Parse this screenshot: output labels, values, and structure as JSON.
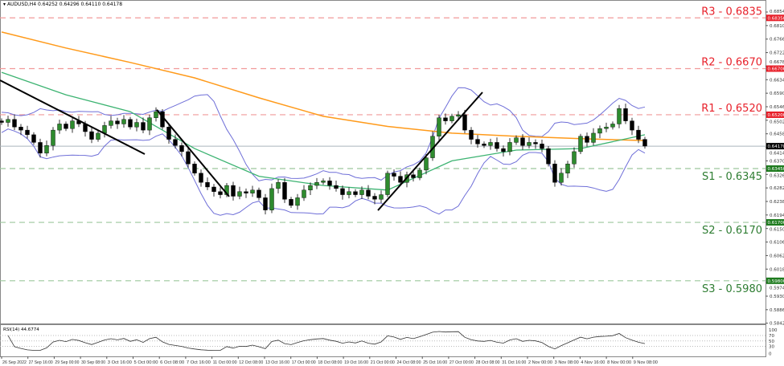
{
  "header": {
    "symbol_timeframe": "AUDUSD,H4",
    "ohlc": "0.64252 0.64296 0.64110 0.64178"
  },
  "colors": {
    "resistance": "#e8202a",
    "support": "#2e7d32",
    "ma200": "#ff9a1a",
    "ma50": "#3cb371",
    "bollinger": "#6f6fd8",
    "trendline": "#000000",
    "bull_candle": "#2e8b2e",
    "bear_candle": "#000000"
  },
  "chart_data": {
    "type": "candlestick",
    "symbol": "AUDUSD",
    "timeframe": "H4",
    "ylim": [
      0.5842,
      0.6854
    ],
    "y_ticks": [
      "0.68540",
      "0.68100",
      "0.67660",
      "0.67220",
      "0.66780",
      "0.66340",
      "0.65900",
      "0.65460",
      "0.65020",
      "0.64580",
      "0.64140",
      "0.63700",
      "0.63260",
      "0.62820",
      "0.62380",
      "0.61940",
      "0.61500",
      "0.61060",
      "0.60620",
      "0.60180",
      "0.59740",
      "0.59300",
      "0.58860",
      "0.58420"
    ],
    "x_ticks": [
      "26 Sep 2022",
      "27 Sep 16:00",
      "29 Sep 00:00",
      "30 Sep 08:00",
      "3 Oct 16:00",
      "5 Oct 00:00",
      "6 Oct 08:00",
      "7 Oct 16:00",
      "11 Oct 00:00",
      "12 Oct 08:00",
      "13 Oct 16:00",
      "17 Oct 00:00",
      "18 Oct 08:00",
      "19 Oct 16:00",
      "21 Oct 00:00",
      "24 Oct 08:00",
      "25 Oct 16:00",
      "27 Oct 00:00",
      "28 Oct 08:00",
      "31 Oct 16:00",
      "2 Nov 00:00",
      "3 Nov 08:00",
      "4 Nov 16:00",
      "8 Nov 00:00",
      "9 Nov 08:00"
    ],
    "closes": [
      0.6495,
      0.6505,
      0.648,
      0.647,
      0.6455,
      0.643,
      0.6395,
      0.642,
      0.647,
      0.649,
      0.6475,
      0.65,
      0.649,
      0.6465,
      0.644,
      0.646,
      0.6485,
      0.65,
      0.649,
      0.6505,
      0.648,
      0.6495,
      0.647,
      0.651,
      0.653,
      0.648,
      0.644,
      0.642,
      0.64,
      0.636,
      0.633,
      0.63,
      0.6285,
      0.627,
      0.626,
      0.629,
      0.6255,
      0.627,
      0.6265,
      0.6275,
      0.625,
      0.621,
      0.628,
      0.63,
      0.6245,
      0.6225,
      0.625,
      0.6275,
      0.629,
      0.63,
      0.6305,
      0.629,
      0.628,
      0.626,
      0.627,
      0.626,
      0.6275,
      0.6255,
      0.6245,
      0.626,
      0.633,
      0.632,
      0.63,
      0.6325,
      0.6315,
      0.634,
      0.638,
      0.645,
      0.651,
      0.65,
      0.6515,
      0.652,
      0.647,
      0.644,
      0.6425,
      0.642,
      0.643,
      0.641,
      0.64,
      0.643,
      0.6445,
      0.642,
      0.643,
      0.6425,
      0.641,
      0.636,
      0.63,
      0.633,
      0.636,
      0.64,
      0.645,
      0.643,
      0.646,
      0.6475,
      0.648,
      0.649,
      0.654,
      0.65,
      0.647,
      0.644,
      0.6418
    ],
    "ma200": [
      0.6789,
      0.6737,
      0.669,
      0.664,
      0.6575,
      0.6515,
      0.6482,
      0.646,
      0.645,
      0.6442,
      0.6436
    ],
    "ma50": [
      0.6658,
      0.6585,
      0.653,
      0.641,
      0.632,
      0.629,
      0.6275,
      0.637,
      0.6405,
      0.641,
      0.6455
    ],
    "current_price": "0.64178",
    "levels": [
      {
        "label": "R3 - 0.6835",
        "price": 0.6835,
        "tag": "0.68350",
        "kind": "resistance"
      },
      {
        "label": "R2 - 0.6670",
        "price": 0.667,
        "tag": "0.66700",
        "kind": "resistance"
      },
      {
        "label": "R1 - 0.6520",
        "price": 0.652,
        "tag": "0.65200",
        "kind": "resistance"
      },
      {
        "label": "S1 - 0.6345",
        "price": 0.6345,
        "tag": "0.63450",
        "kind": "support"
      },
      {
        "label": "S2 - 0.6170",
        "price": 0.617,
        "tag": "0.61700",
        "kind": "support"
      },
      {
        "label": "S3 - 0.5980",
        "price": 0.598,
        "tag": "0.59800",
        "kind": "support"
      }
    ],
    "trendlines": [
      {
        "from": [
          "26 Sep 2022",
          0.6632
        ],
        "to": [
          "5 Oct 16:00",
          0.6392
        ]
      },
      {
        "from": [
          "6 Oct 04:00",
          0.6536
        ],
        "to": [
          "10 Oct 12:00",
          0.6254
        ]
      },
      {
        "from": [
          "21 Oct 16:00",
          0.6209
        ],
        "to": [
          "28 Oct 08:00",
          0.6593
        ]
      }
    ],
    "rsi": {
      "label": "RSI(14) 44.6774",
      "levels": [
        "100",
        "70",
        "50",
        "30",
        "0"
      ]
    }
  }
}
